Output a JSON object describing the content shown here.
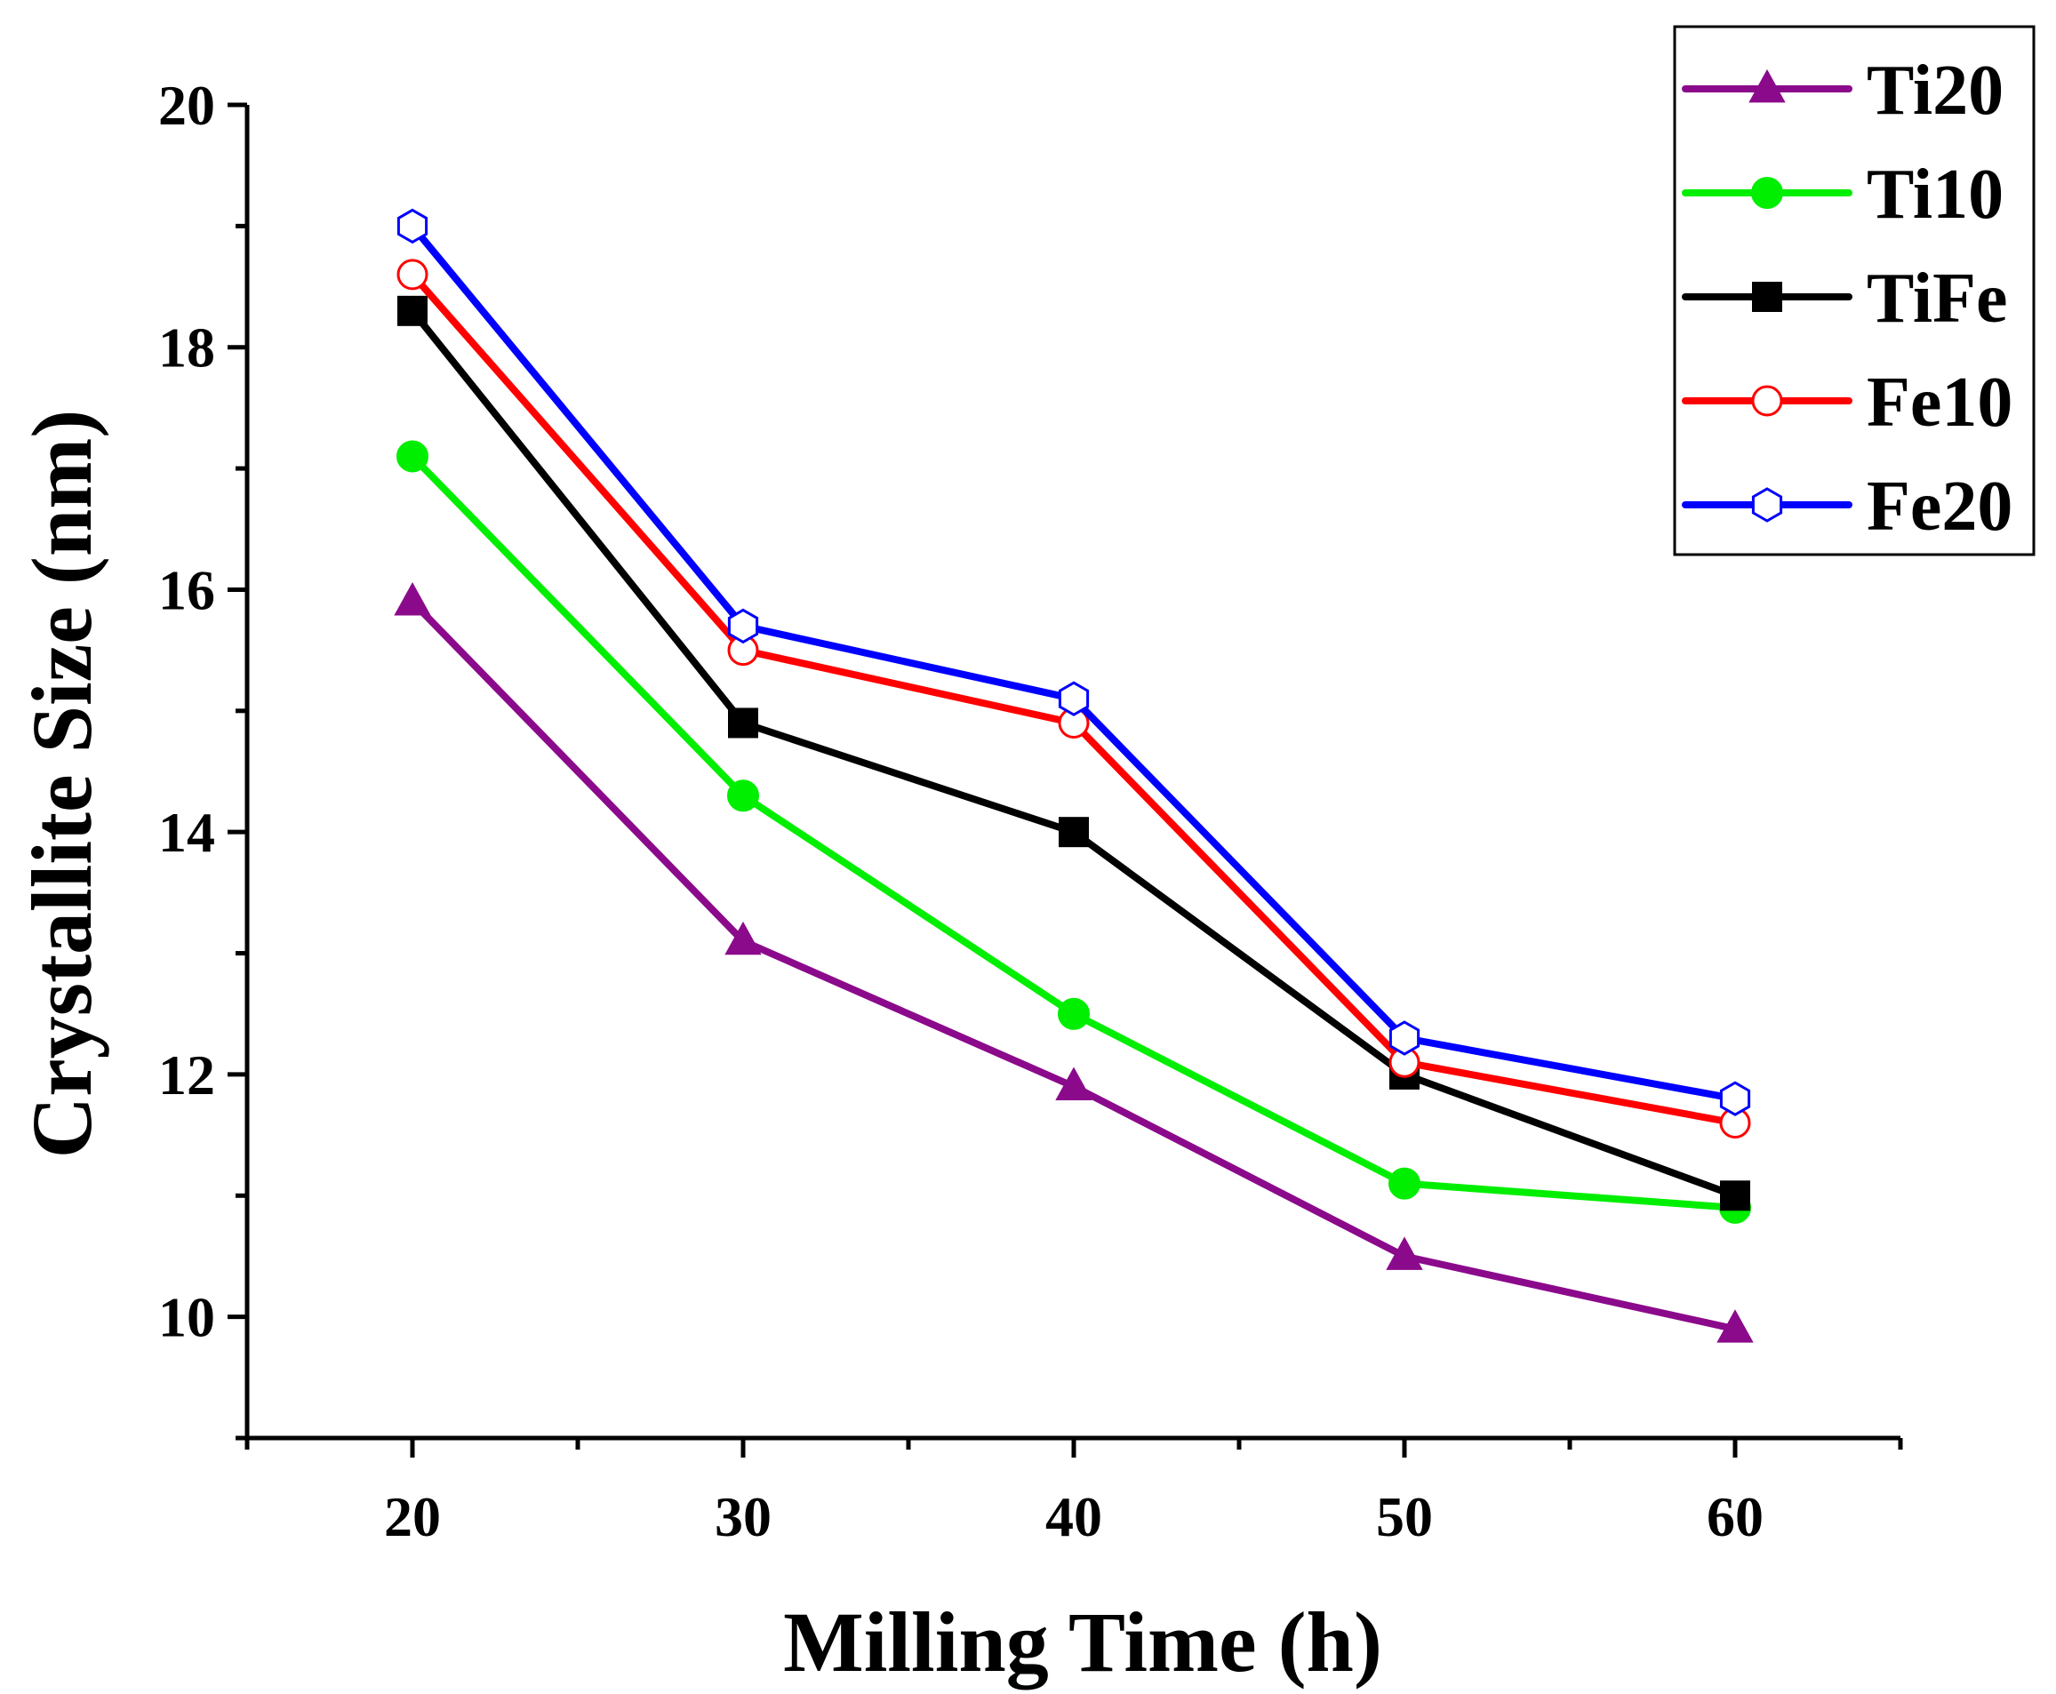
{
  "chart_data": {
    "type": "line",
    "xlabel": "Milling Time (h)",
    "ylabel": "Crystallite Size (nm)",
    "x": [
      20,
      30,
      40,
      50,
      60
    ],
    "xlim": [
      15,
      65
    ],
    "ylim": [
      9,
      20
    ],
    "x_ticks": [
      20,
      30,
      40,
      50,
      60
    ],
    "x_tick_labels": [
      "20",
      "30",
      "40",
      "50",
      "60"
    ],
    "y_ticks": [
      10,
      12,
      14,
      16,
      18,
      20
    ],
    "y_tick_labels": [
      "10",
      "12",
      "14",
      "16",
      "18",
      "20"
    ],
    "legend_position": "top-right",
    "grid": false,
    "series": [
      {
        "name": "Ti20",
        "color": "#8B0A8B",
        "marker": "triangle",
        "values": [
          15.9,
          13.1,
          11.9,
          10.5,
          9.9
        ]
      },
      {
        "name": "Ti10",
        "color": "#00EE00",
        "marker": "circle-filled",
        "values": [
          17.1,
          14.3,
          12.5,
          11.1,
          10.9
        ]
      },
      {
        "name": "TiFe",
        "color": "#000000",
        "marker": "square",
        "values": [
          18.3,
          14.9,
          14.0,
          12.0,
          11.0
        ]
      },
      {
        "name": "Fe10",
        "color": "#FF0000",
        "marker": "circle-open",
        "values": [
          18.6,
          15.5,
          14.9,
          12.1,
          11.6
        ]
      },
      {
        "name": "Fe20",
        "color": "#0000FF",
        "marker": "hexagon-open",
        "values": [
          19.0,
          15.7,
          15.1,
          12.3,
          11.8
        ]
      }
    ]
  }
}
